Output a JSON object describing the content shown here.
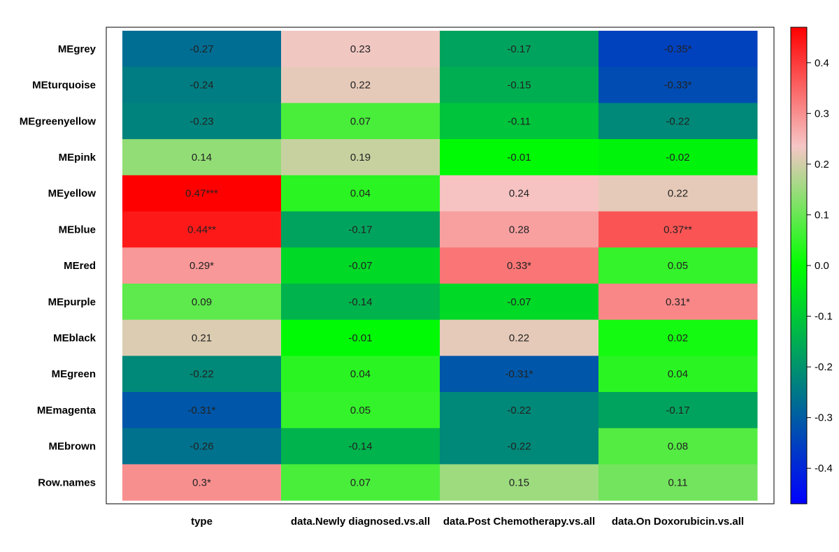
{
  "chart_data": {
    "type": "heatmap",
    "rows": [
      "MEgrey",
      "MEturquoise",
      "MEgreenyellow",
      "MEpink",
      "MEyellow",
      "MEblue",
      "MEred",
      "MEpurple",
      "MEblack",
      "MEgreen",
      "MEmagenta",
      "MEbrown",
      "Row.names"
    ],
    "columns": [
      "type",
      "data.Newly diagnosed.vs.all",
      "data.Post Chemotherapy.vs.all",
      "data.On Doxorubicin.vs.all"
    ],
    "values": [
      [
        -0.27,
        0.23,
        -0.17,
        -0.35
      ],
      [
        -0.24,
        0.22,
        -0.15,
        -0.33
      ],
      [
        -0.23,
        0.07,
        -0.11,
        -0.22
      ],
      [
        0.14,
        0.19,
        -0.01,
        -0.02
      ],
      [
        0.47,
        0.04,
        0.24,
        0.22
      ],
      [
        0.44,
        -0.17,
        0.28,
        0.37
      ],
      [
        0.29,
        -0.07,
        0.33,
        0.05
      ],
      [
        0.09,
        -0.14,
        -0.07,
        0.31
      ],
      [
        0.21,
        -0.01,
        0.22,
        0.02
      ],
      [
        -0.22,
        0.04,
        -0.31,
        0.04
      ],
      [
        -0.31,
        0.05,
        -0.22,
        -0.17
      ],
      [
        -0.26,
        -0.14,
        -0.22,
        0.08
      ],
      [
        0.3,
        0.07,
        0.15,
        0.11
      ]
    ],
    "labels": [
      [
        "-0.27",
        "0.23",
        "-0.17",
        "-0.35*"
      ],
      [
        "-0.24",
        "0.22",
        "-0.15",
        "-0.33*"
      ],
      [
        "-0.23",
        "0.07",
        "-0.11",
        "-0.22"
      ],
      [
        "0.14",
        "0.19",
        "-0.01",
        "-0.02"
      ],
      [
        "0.47***",
        "0.04",
        "0.24",
        "0.22"
      ],
      [
        "0.44**",
        "-0.17",
        "0.28",
        "0.37**"
      ],
      [
        "0.29*",
        "-0.07",
        "0.33*",
        "0.05"
      ],
      [
        "0.09",
        "-0.14",
        "-0.07",
        "0.31*"
      ],
      [
        "0.21",
        "-0.01",
        "0.22",
        "0.02"
      ],
      [
        "-0.22",
        "0.04",
        "-0.31*",
        "0.04"
      ],
      [
        "-0.31*",
        "0.05",
        "-0.22",
        "-0.17"
      ],
      [
        "-0.26",
        "-0.14",
        "-0.22",
        "0.08"
      ],
      [
        "0.3*",
        "0.07",
        "0.15",
        "0.11"
      ]
    ],
    "colorbar": {
      "range": [
        -0.47,
        0.47
      ],
      "ticks": [
        0.4,
        0.3,
        0.2,
        0.1,
        0.0,
        -0.1,
        -0.2,
        -0.3,
        -0.4
      ],
      "tick_labels": [
        "0.4",
        "0.3",
        "0.2",
        "0.1",
        "0.0",
        "-0.1",
        "-0.2",
        "-0.3",
        "-0.4"
      ],
      "colors": [
        "#0000ff",
        "#008080",
        "#00ff00",
        "#f6c6c6",
        "#ff0000"
      ]
    },
    "title": "",
    "xlabel": "",
    "ylabel": ""
  }
}
